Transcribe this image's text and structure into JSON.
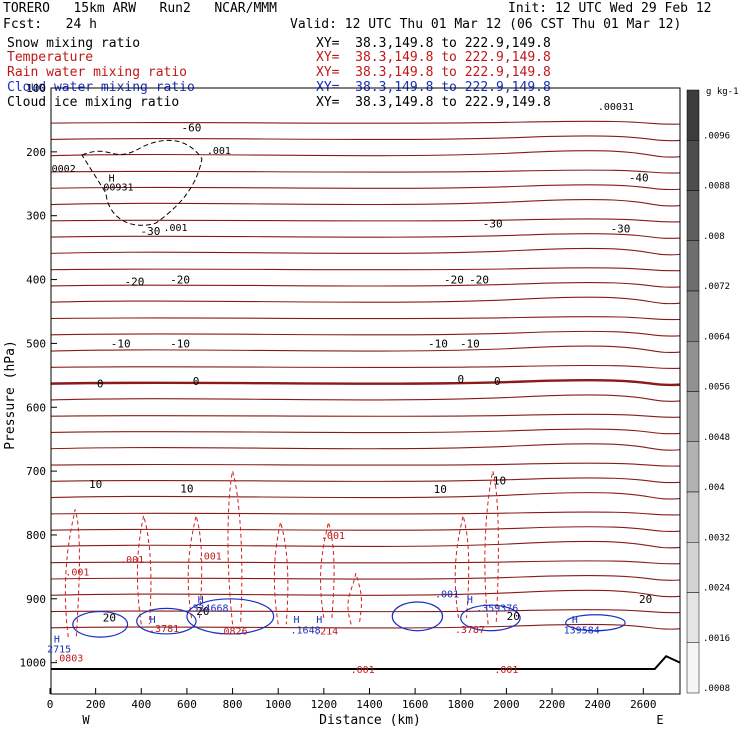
{
  "header": {
    "model": "TORERO   15km ARW   Run2   NCAR/MMM",
    "init": "Init: 12 UTC Wed 29 Feb 12",
    "fcst": "Fcst:   24 h",
    "valid": "Valid: 12 UTC Thu 01 Mar 12 (06 CST Thu 01 Mar 12)"
  },
  "fields": [
    {
      "name": "Snow mixing ratio",
      "xy": "XY=  38.3,149.8 to 222.9,149.8",
      "color": "#000000"
    },
    {
      "name": "Temperature",
      "xy": "XY=  38.3,149.8 to 222.9,149.8",
      "color": "#c01818"
    },
    {
      "name": "Rain water mixing ratio",
      "xy": "XY=  38.3,149.8 to 222.9,149.8",
      "color": "#c01818"
    },
    {
      "name": "Cloud water mixing ratio",
      "xy": "XY=  38.3,149.8 to 222.9,149.8",
      "color": "#1830c0"
    },
    {
      "name": "Cloud ice mixing ratio",
      "xy": "XY=  38.3,149.8 to 222.9,149.8",
      "color": "#000000"
    }
  ],
  "chart_data": {
    "type": "contour-cross-section",
    "xlabel": "Distance (km)",
    "ylabel": "Pressure (hPa)",
    "x_ticks": [
      0,
      200,
      400,
      600,
      800,
      1000,
      1200,
      1400,
      1600,
      1800,
      2000,
      2200,
      2400,
      2600
    ],
    "y_ticks": [
      100,
      200,
      300,
      400,
      500,
      600,
      700,
      800,
      900,
      1000
    ],
    "xlim": [
      0,
      2750
    ],
    "ylim": [
      1050,
      100
    ],
    "left_end": "W",
    "right_end": "E",
    "colorbar": {
      "unit": "g kg-1",
      "ticks": [
        ".0096",
        ".0088",
        ".008",
        ".0072",
        ".0064",
        ".0056",
        ".0048",
        ".004",
        ".0032",
        ".0024",
        ".0016",
        ".0008"
      ]
    },
    "temperature_labels": [
      {
        "text": "-60",
        "x": 620,
        "p": 162
      },
      {
        "text": "-40",
        "x": 2580,
        "p": 240
      },
      {
        "text": "-30",
        "x": 440,
        "p": 324
      },
      {
        "text": "-30",
        "x": 1940,
        "p": 312
      },
      {
        "text": "-30",
        "x": 2500,
        "p": 320
      },
      {
        "text": "-20",
        "x": 370,
        "p": 403
      },
      {
        "text": "-20",
        "x": 570,
        "p": 400
      },
      {
        "text": "-20",
        "x": 1770,
        "p": 400
      },
      {
        "text": "-20",
        "x": 1880,
        "p": 400
      },
      {
        "text": "-10",
        "x": 310,
        "p": 500
      },
      {
        "text": "-10",
        "x": 570,
        "p": 500
      },
      {
        "text": "-10",
        "x": 1700,
        "p": 500
      },
      {
        "text": "-10",
        "x": 1840,
        "p": 500
      },
      {
        "text": "0",
        "x": 220,
        "p": 563
      },
      {
        "text": "0",
        "x": 640,
        "p": 559
      },
      {
        "text": "0",
        "x": 1800,
        "p": 556
      },
      {
        "text": "0",
        "x": 1960,
        "p": 559
      },
      {
        "text": "10",
        "x": 200,
        "p": 720
      },
      {
        "text": "10",
        "x": 600,
        "p": 727
      },
      {
        "text": "10",
        "x": 1710,
        "p": 728
      },
      {
        "text": "10",
        "x": 1970,
        "p": 715
      },
      {
        "text": "20",
        "x": 260,
        "p": 929
      },
      {
        "text": "20",
        "x": 670,
        "p": 919
      },
      {
        "text": "20",
        "x": 2030,
        "p": 927
      },
      {
        "text": "20",
        "x": 2610,
        "p": 900
      }
    ],
    "mixing_ratio_labels": [
      {
        "text": ".001",
        "x": 740,
        "p": 197,
        "color": "#000000"
      },
      {
        "text": "0002",
        "x": 60,
        "p": 225,
        "color": "#000000"
      },
      {
        "text": "H",
        "x": 270,
        "p": 240,
        "color": "#000000"
      },
      {
        "text": "00931",
        "x": 300,
        "p": 254,
        "color": "#000000"
      },
      {
        "text": ".001",
        "x": 550,
        "p": 318,
        "color": "#000000"
      },
      {
        "text": ".00031",
        "x": 2480,
        "p": 128,
        "color": "#000000"
      },
      {
        "text": ".001",
        "x": 120,
        "p": 857,
        "color": "#c01818"
      },
      {
        "text": ".001",
        "x": 360,
        "p": 838,
        "color": "#c01818"
      },
      {
        "text": ".001",
        "x": 700,
        "p": 832,
        "color": "#c01818"
      },
      {
        "text": ".001",
        "x": 1240,
        "p": 800,
        "color": "#c01818"
      },
      {
        "text": ".001",
        "x": 1370,
        "p": 1010,
        "color": "#c01818"
      },
      {
        "text": ".001",
        "x": 2000,
        "p": 1010,
        "color": "#c01818"
      },
      {
        "text": ".0826",
        "x": 800,
        "p": 950,
        "color": "#c01818"
      },
      {
        "text": ".3781",
        "x": 500,
        "p": 946,
        "color": "#c01818"
      },
      {
        "text": ".0803",
        "x": 80,
        "p": 992,
        "color": "#c01818"
      },
      {
        "text": ".3787",
        "x": 1840,
        "p": 947,
        "color": "#c01818"
      },
      {
        "text": ".214",
        "x": 1210,
        "p": 950,
        "color": "#c01818"
      },
      {
        "text": "H",
        "x": 660,
        "p": 900,
        "color": "#1830c0"
      },
      {
        "text": ".334668",
        "x": 690,
        "p": 914,
        "color": "#1830c0"
      },
      {
        "text": "H",
        "x": 450,
        "p": 932,
        "color": "#1830c0"
      },
      {
        "text": "H",
        "x": 1080,
        "p": 932,
        "color": "#1830c0"
      },
      {
        "text": ".1648",
        "x": 1120,
        "p": 948,
        "color": "#1830c0"
      },
      {
        "text": "H",
        "x": 1180,
        "p": 932,
        "color": "#1830c0"
      },
      {
        "text": ".001",
        "x": 1740,
        "p": 892,
        "color": "#1830c0"
      },
      {
        "text": "H",
        "x": 1840,
        "p": 900,
        "color": "#1830c0"
      },
      {
        "text": ".359376",
        "x": 1960,
        "p": 914,
        "color": "#1830c0"
      },
      {
        "text": "H",
        "x": 2300,
        "p": 932,
        "color": "#1830c0"
      },
      {
        "text": "139584",
        "x": 2330,
        "p": 948,
        "color": "#1830c0"
      },
      {
        "text": "H",
        "x": 30,
        "p": 962,
        "color": "#1830c0"
      },
      {
        "text": "2715",
        "x": 40,
        "p": 978,
        "color": "#1830c0"
      }
    ]
  }
}
